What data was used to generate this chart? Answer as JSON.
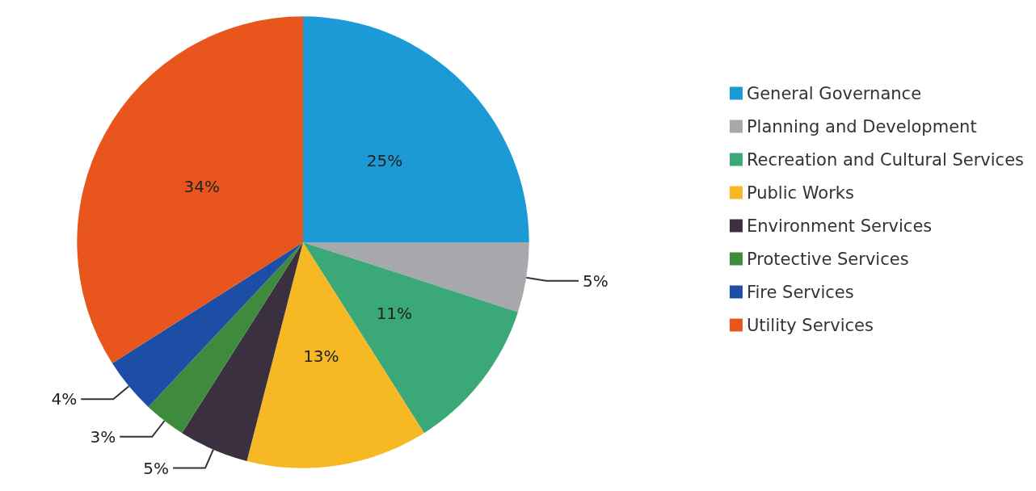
{
  "chart_data": {
    "type": "pie",
    "categories": [
      "General Governance",
      "Planning and Development",
      "Recreation and Cultural Services",
      "Public Works",
      "Environment Services",
      "Protective Services",
      "Fire Services",
      "Utility Services"
    ],
    "values": [
      25,
      5,
      11,
      13,
      5,
      3,
      4,
      34
    ],
    "value_labels": [
      "25%",
      "5%",
      "11%",
      "13%",
      "5%",
      "3%",
      "4%",
      "34%"
    ],
    "colors": [
      "#1b9ad6",
      "#a7a8ac",
      "#3aa877",
      "#f6b823",
      "#3b3040",
      "#3f8b3d",
      "#1d4ea6",
      "#e9561d"
    ],
    "legend": "right"
  }
}
